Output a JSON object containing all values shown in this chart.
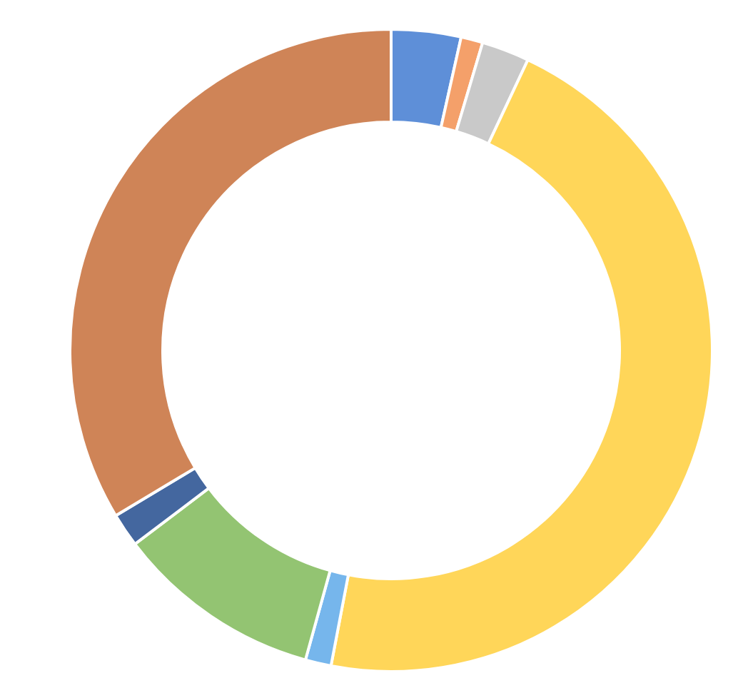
{
  "chart_data": {
    "type": "donut",
    "categories": [
      null,
      null,
      null,
      null,
      null,
      null,
      null,
      null
    ],
    "values": [
      3.5,
      1.1,
      2.4,
      46,
      1.3,
      10.4,
      1.7,
      33.6
    ],
    "colors": [
      "#5e8fd8",
      "#f4a06a",
      "#c9c9c9",
      "#ffd659",
      "#76b6ec",
      "#93c472",
      "#44679f",
      "#cf8457"
    ],
    "legend": false
  }
}
